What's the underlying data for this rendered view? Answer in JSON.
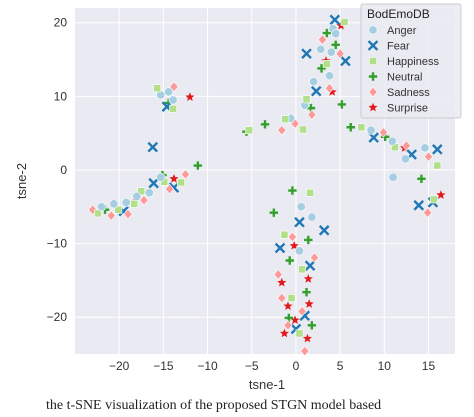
{
  "chart_data": {
    "type": "scatter",
    "title": "",
    "xlabel": "tsne-1",
    "ylabel": "tsne-2",
    "xlim": [
      -25,
      18
    ],
    "ylim": [
      -25,
      22
    ],
    "xticks": [
      -20,
      -15,
      -10,
      -5,
      0,
      5,
      10,
      15
    ],
    "yticks": [
      -20,
      -10,
      0,
      10,
      20
    ],
    "xtick_labels": [
      "−20",
      "−15",
      "−10",
      "−5",
      "0",
      "5",
      "10",
      "15"
    ],
    "ytick_labels": [
      "−20",
      "−10",
      "0",
      "10",
      "20"
    ],
    "grid": true,
    "background": "#eaeaf2",
    "legend": {
      "title": "BodEmoDB",
      "placement": "top-right",
      "entries": [
        {
          "name": "Anger",
          "color": "#a6cee3",
          "marker": "circle"
        },
        {
          "name": "Fear",
          "color": "#1f78b4",
          "marker": "x"
        },
        {
          "name": "Happiness",
          "color": "#b2df8a",
          "marker": "square"
        },
        {
          "name": "Neutral",
          "color": "#33a02c",
          "marker": "plus"
        },
        {
          "name": "Sadness",
          "color": "#fb9a99",
          "marker": "diamond"
        },
        {
          "name": "Surprise",
          "color": "#e31a1c",
          "marker": "star"
        }
      ]
    },
    "series": [
      {
        "name": "Anger",
        "points": [
          [
            -15.3,
            10.2
          ],
          [
            -14.4,
            10.6
          ],
          [
            -13.9,
            9.5
          ],
          [
            -22,
            -5
          ],
          [
            -20.6,
            -4.6
          ],
          [
            -19.2,
            -4.4
          ],
          [
            -18,
            -3.6
          ],
          [
            -16.6,
            -3.1
          ],
          [
            -15.3,
            -1
          ],
          [
            -0.6,
            7
          ],
          [
            1,
            8.8
          ],
          [
            2,
            12
          ],
          [
            3.8,
            12.8
          ],
          [
            4.2,
            19.2
          ],
          [
            4,
            16
          ],
          [
            2.8,
            16.4
          ],
          [
            4.5,
            18.5
          ],
          [
            8.5,
            5.4
          ],
          [
            10.9,
            3.9
          ],
          [
            12.4,
            1.5
          ],
          [
            14.6,
            3
          ],
          [
            11,
            -1
          ],
          [
            0.4,
            -11
          ],
          [
            1.8,
            -6.4
          ],
          [
            0.6,
            -5
          ]
        ]
      },
      {
        "name": "Fear",
        "points": [
          [
            -16.2,
            3.1
          ],
          [
            -14.6,
            8.6
          ],
          [
            -19.5,
            -5.6
          ],
          [
            -13.8,
            -2.4
          ],
          [
            -16.1,
            -1.8
          ],
          [
            1.2,
            15.8
          ],
          [
            4.4,
            20.4
          ],
          [
            5.6,
            14.8
          ],
          [
            2.3,
            10.7
          ],
          [
            8.8,
            4.4
          ],
          [
            13.1,
            2.1
          ],
          [
            16,
            2.8
          ],
          [
            15.5,
            -4.4
          ],
          [
            13.9,
            -4.8
          ],
          [
            3.2,
            -8.2
          ],
          [
            0.4,
            -7.1
          ],
          [
            -1.8,
            -10.6
          ],
          [
            1.6,
            -13
          ],
          [
            1,
            -19.8
          ],
          [
            0,
            -21.6
          ]
        ]
      },
      {
        "name": "Happiness",
        "points": [
          [
            -15.7,
            11.1
          ],
          [
            -13.9,
            8.3
          ],
          [
            -22.4,
            -5.9
          ],
          [
            -20.1,
            -5.4
          ],
          [
            -18.3,
            -4.6
          ],
          [
            -17.5,
            -2.9
          ],
          [
            -14.9,
            -1.6
          ],
          [
            -13,
            -1.7
          ],
          [
            -5.3,
            5.4
          ],
          [
            -1.2,
            6.9
          ],
          [
            0.8,
            5.5
          ],
          [
            1.2,
            9.6
          ],
          [
            3.5,
            14.4
          ],
          [
            5.5,
            20.1
          ],
          [
            7.4,
            5.8
          ],
          [
            11.2,
            3.1
          ],
          [
            16,
            0.6
          ],
          [
            15.6,
            -4
          ],
          [
            -1.3,
            -8.8
          ],
          [
            1.6,
            -3.1
          ],
          [
            0.7,
            -13.5
          ],
          [
            -0.5,
            -17.4
          ],
          [
            0.4,
            -22.2
          ]
        ]
      },
      {
        "name": "Neutral",
        "points": [
          [
            -14.4,
            9.1
          ],
          [
            -21.6,
            -5.4
          ],
          [
            -15.1,
            -0.7
          ],
          [
            -11.1,
            0.6
          ],
          [
            -5.6,
            5.2
          ],
          [
            -3.5,
            6.2
          ],
          [
            1.7,
            8.4
          ],
          [
            2.9,
            13.8
          ],
          [
            4.5,
            17
          ],
          [
            3.5,
            18.6
          ],
          [
            5.2,
            8.9
          ],
          [
            6.2,
            5.8
          ],
          [
            10.1,
            4.5
          ],
          [
            14.2,
            -1.2
          ],
          [
            -0.4,
            -2.8
          ],
          [
            -2.5,
            -5.8
          ],
          [
            1.4,
            -9.5
          ],
          [
            -0.7,
            -12.3
          ],
          [
            1.2,
            -16.6
          ],
          [
            -0.8,
            -20.1
          ],
          [
            1.8,
            -21.1
          ]
        ]
      },
      {
        "name": "Sadness",
        "points": [
          [
            -13.8,
            11.3
          ],
          [
            -23,
            -5.4
          ],
          [
            -20.9,
            -6.2
          ],
          [
            -19,
            -6
          ],
          [
            -17.2,
            -4.1
          ],
          [
            -14.3,
            -2.6
          ],
          [
            -12.5,
            -0.6
          ],
          [
            -1.6,
            5.4
          ],
          [
            -0.1,
            6.3
          ],
          [
            1.8,
            7.5
          ],
          [
            3.8,
            11.1
          ],
          [
            5,
            15.8
          ],
          [
            3,
            17.7
          ],
          [
            9.9,
            5.1
          ],
          [
            12.5,
            3.3
          ],
          [
            15,
            1.8
          ],
          [
            14.9,
            -5.8
          ],
          [
            -0.4,
            -9.1
          ],
          [
            -2,
            -14.2
          ],
          [
            2.1,
            -11.9
          ],
          [
            -1.6,
            -17.4
          ],
          [
            0.7,
            -19.2
          ],
          [
            -0.9,
            -21.1
          ],
          [
            1,
            -24.6
          ]
        ]
      },
      {
        "name": "Surprise",
        "points": [
          [
            -12,
            9.9
          ],
          [
            -18.3,
            -4.3
          ],
          [
            -13.8,
            -1.2
          ],
          [
            4.1,
            10.6
          ],
          [
            3.4,
            14.8
          ],
          [
            5.1,
            19.6
          ],
          [
            12.3,
            3
          ],
          [
            16.4,
            -3.4
          ],
          [
            -0.2,
            -10.3
          ],
          [
            -1.6,
            -15.3
          ],
          [
            1.4,
            -14.8
          ],
          [
            -0.9,
            -18.5
          ],
          [
            1.5,
            -18.2
          ],
          [
            -0.1,
            -20.4
          ],
          [
            1.3,
            -22.9
          ],
          [
            -1.3,
            -22.2
          ]
        ]
      }
    ]
  },
  "caption": "the t-SNE visualization of the proposed STGN model based"
}
